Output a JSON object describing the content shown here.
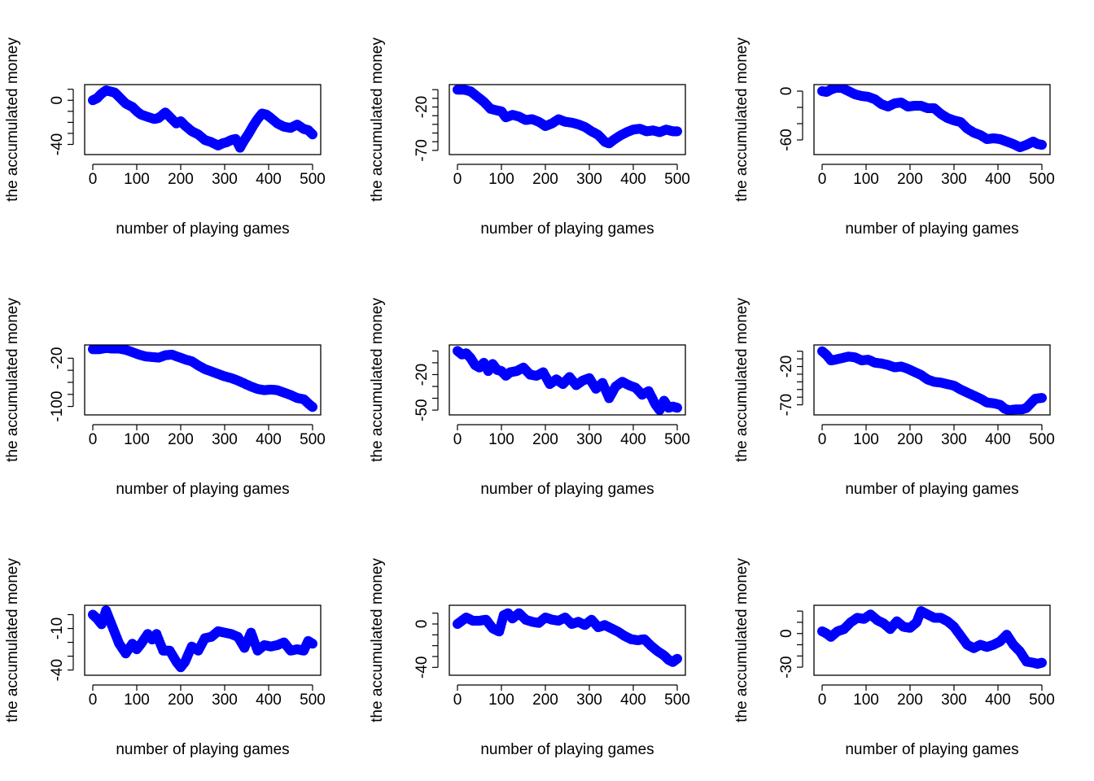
{
  "figure": {
    "xlabel": "number of playing games",
    "ylabel": "the accumulated money",
    "point_color": "#0000FF",
    "x_ticks": [
      0,
      100,
      200,
      300,
      400,
      500
    ]
  },
  "chart_data": [
    {
      "type": "scatter",
      "xlabel": "number of playing games",
      "ylabel": "the accumulated money",
      "xlim": [
        0,
        500
      ],
      "ylim": [
        -47,
        12
      ],
      "yticks": [
        -40,
        -30,
        -20,
        -10,
        0,
        10
      ],
      "ytick_labels": [
        "-40",
        "",
        "",
        "",
        "0",
        ""
      ],
      "x": [
        0,
        10,
        20,
        30,
        40,
        50,
        60,
        75,
        90,
        100,
        110,
        125,
        140,
        150,
        165,
        175,
        190,
        200,
        210,
        225,
        240,
        255,
        270,
        285,
        295,
        305,
        315,
        325,
        335,
        345,
        355,
        365,
        375,
        385,
        395,
        405,
        420,
        435,
        450,
        465,
        480,
        490,
        500
      ],
      "values": [
        0,
        2,
        6,
        9,
        8,
        7,
        3,
        -3,
        -6,
        -10,
        -13,
        -15,
        -17,
        -16,
        -11,
        -15,
        -21,
        -19,
        -23,
        -28,
        -31,
        -36,
        -38,
        -41,
        -39,
        -38,
        -36,
        -35,
        -43,
        -36,
        -30,
        -23,
        -17,
        -12,
        -13,
        -16,
        -21,
        -24,
        -25,
        -22,
        -26,
        -27,
        -31
      ]
    },
    {
      "type": "scatter",
      "xlabel": "number of playing games",
      "ylabel": "the accumulated money",
      "xlim": [
        0,
        500
      ],
      "ylim": [
        -72,
        3
      ],
      "yticks": [
        -70,
        -60,
        -50,
        -40,
        -30,
        -20,
        -10,
        0
      ],
      "ytick_labels": [
        "-70",
        "",
        "",
        "",
        "",
        "-20",
        "",
        ""
      ],
      "x": [
        0,
        15,
        30,
        45,
        60,
        75,
        90,
        100,
        110,
        125,
        140,
        155,
        170,
        185,
        200,
        215,
        230,
        245,
        260,
        275,
        290,
        305,
        320,
        335,
        345,
        355,
        370,
        385,
        400,
        415,
        430,
        445,
        460,
        475,
        490,
        500
      ],
      "values": [
        0,
        0,
        -2,
        -8,
        -14,
        -22,
        -24,
        -25,
        -32,
        -29,
        -31,
        -35,
        -34,
        -37,
        -42,
        -39,
        -34,
        -37,
        -38,
        -40,
        -43,
        -48,
        -52,
        -60,
        -62,
        -58,
        -53,
        -49,
        -46,
        -45,
        -48,
        -47,
        -49,
        -46,
        -48,
        -48
      ]
    },
    {
      "type": "scatter",
      "xlabel": "number of playing games",
      "ylabel": "the accumulated money",
      "xlim": [
        0,
        500
      ],
      "ylim": [
        -75,
        5
      ],
      "yticks": [
        -60,
        -40,
        -20,
        0
      ],
      "ytick_labels": [
        "-60",
        "",
        "",
        "0"
      ],
      "x": [
        0,
        10,
        20,
        30,
        45,
        60,
        75,
        90,
        105,
        120,
        135,
        150,
        165,
        180,
        195,
        210,
        225,
        240,
        255,
        270,
        285,
        300,
        315,
        330,
        345,
        360,
        375,
        390,
        405,
        420,
        435,
        450,
        465,
        480,
        490,
        500
      ],
      "values": [
        0,
        -1,
        2,
        4,
        4,
        0,
        -4,
        -6,
        -7,
        -10,
        -16,
        -19,
        -15,
        -14,
        -19,
        -18,
        -18,
        -21,
        -21,
        -28,
        -33,
        -36,
        -38,
        -46,
        -51,
        -54,
        -59,
        -58,
        -59,
        -62,
        -65,
        -69,
        -66,
        -62,
        -65,
        -66
      ]
    },
    {
      "type": "scatter",
      "xlabel": "number of playing games",
      "ylabel": "the accumulated money",
      "xlim": [
        0,
        500
      ],
      "ylim": [
        -110,
        -2
      ],
      "yticks": [
        -100,
        -80,
        -60,
        -40,
        -20
      ],
      "ytick_labels": [
        "-100",
        "",
        "",
        "",
        "-20"
      ],
      "x": [
        0,
        15,
        30,
        45,
        60,
        75,
        90,
        105,
        120,
        135,
        150,
        165,
        180,
        195,
        210,
        225,
        240,
        255,
        270,
        285,
        300,
        315,
        330,
        345,
        360,
        375,
        390,
        405,
        420,
        435,
        450,
        465,
        480,
        490,
        500
      ],
      "values": [
        -5,
        -5,
        -3,
        -4,
        -4,
        -6,
        -10,
        -14,
        -17,
        -18,
        -19,
        -15,
        -14,
        -18,
        -22,
        -25,
        -32,
        -38,
        -42,
        -46,
        -50,
        -53,
        -57,
        -62,
        -67,
        -71,
        -73,
        -72,
        -73,
        -77,
        -81,
        -86,
        -88,
        -95,
        -101
      ]
    },
    {
      "type": "scatter",
      "xlabel": "number of playing games",
      "ylabel": "the accumulated money",
      "xlim": [
        0,
        500
      ],
      "ylim": [
        -52,
        3
      ],
      "yticks": [
        -50,
        -40,
        -30,
        -20,
        -10,
        0
      ],
      "ytick_labels": [
        "-50",
        "",
        "",
        "-20",
        "",
        ""
      ],
      "x": [
        0,
        10,
        20,
        30,
        40,
        50,
        60,
        70,
        80,
        90,
        100,
        110,
        120,
        135,
        150,
        165,
        180,
        195,
        210,
        225,
        240,
        255,
        270,
        285,
        300,
        315,
        330,
        345,
        360,
        375,
        390,
        405,
        420,
        435,
        450,
        460,
        470,
        480,
        490,
        500
      ],
      "values": [
        0,
        -3,
        -2,
        -6,
        -12,
        -14,
        -10,
        -17,
        -11,
        -16,
        -17,
        -21,
        -18,
        -17,
        -14,
        -20,
        -21,
        -18,
        -28,
        -24,
        -28,
        -22,
        -29,
        -25,
        -23,
        -32,
        -27,
        -40,
        -30,
        -26,
        -29,
        -31,
        -37,
        -34,
        -45,
        -50,
        -42,
        -48,
        -47,
        -48
      ]
    },
    {
      "type": "scatter",
      "xlabel": "number of playing games",
      "ylabel": "the accumulated money",
      "xlim": [
        0,
        500
      ],
      "ylim": [
        -80,
        5
      ],
      "yticks": [
        -70,
        -60,
        -50,
        -40,
        -30,
        -20,
        -10,
        0
      ],
      "ytick_labels": [
        "-70",
        "",
        "",
        "",
        "",
        "-20",
        "",
        ""
      ],
      "x": [
        0,
        10,
        20,
        30,
        45,
        60,
        75,
        90,
        105,
        120,
        135,
        150,
        165,
        180,
        195,
        210,
        225,
        240,
        255,
        270,
        285,
        300,
        315,
        330,
        345,
        360,
        375,
        390,
        405,
        415,
        425,
        440,
        455,
        465,
        475,
        485,
        500
      ],
      "values": [
        0,
        -5,
        -12,
        -11,
        -9,
        -7,
        -8,
        -12,
        -11,
        -15,
        -16,
        -18,
        -21,
        -20,
        -23,
        -27,
        -31,
        -37,
        -40,
        -41,
        -43,
        -45,
        -50,
        -54,
        -58,
        -62,
        -67,
        -68,
        -70,
        -75,
        -77,
        -76,
        -76,
        -74,
        -68,
        -62,
        -61
      ]
    },
    {
      "type": "scatter",
      "xlabel": "number of playing games",
      "ylabel": "the accumulated money",
      "xlim": [
        0,
        500
      ],
      "ylim": [
        -42,
        5
      ],
      "yticks": [
        -40,
        -30,
        -20,
        -10,
        0
      ],
      "ytick_labels": [
        "-40",
        "",
        "",
        "-10",
        ""
      ],
      "x": [
        0,
        10,
        20,
        30,
        40,
        50,
        60,
        75,
        90,
        100,
        110,
        125,
        135,
        145,
        160,
        175,
        190,
        200,
        210,
        225,
        240,
        255,
        270,
        285,
        300,
        315,
        330,
        345,
        360,
        375,
        390,
        405,
        420,
        435,
        450,
        465,
        480,
        490,
        500
      ],
      "values": [
        0,
        -3,
        -7,
        3,
        -5,
        -13,
        -21,
        -28,
        -21,
        -25,
        -21,
        -14,
        -18,
        -14,
        -26,
        -26,
        -34,
        -38,
        -34,
        -23,
        -26,
        -17,
        -16,
        -12,
        -13,
        -14,
        -16,
        -24,
        -13,
        -26,
        -22,
        -23,
        -22,
        -20,
        -26,
        -25,
        -26,
        -19,
        -21
      ]
    },
    {
      "type": "scatter",
      "xlabel": "number of playing games",
      "ylabel": "the accumulated money",
      "xlim": [
        0,
        500
      ],
      "ylim": [
        -45,
        15
      ],
      "yticks": [
        -40,
        -30,
        -20,
        -10,
        0,
        10
      ],
      "ytick_labels": [
        "-40",
        "",
        "",
        "",
        "0",
        ""
      ],
      "x": [
        0,
        10,
        20,
        35,
        50,
        65,
        80,
        95,
        105,
        115,
        125,
        140,
        155,
        170,
        185,
        200,
        215,
        230,
        245,
        260,
        275,
        290,
        305,
        320,
        335,
        350,
        365,
        380,
        395,
        410,
        425,
        440,
        455,
        470,
        480,
        490,
        500
      ],
      "values": [
        0,
        3,
        6,
        3,
        3,
        4,
        -4,
        -7,
        8,
        10,
        5,
        10,
        4,
        2,
        1,
        6,
        4,
        3,
        6,
        0,
        2,
        -1,
        4,
        -3,
        -1,
        -4,
        -7,
        -11,
        -14,
        -15,
        -14,
        -20,
        -25,
        -29,
        -33,
        -35,
        -32
      ]
    },
    {
      "type": "scatter",
      "xlabel": "number of playing games",
      "ylabel": "the accumulated money",
      "xlim": [
        0,
        500
      ],
      "ylim": [
        -35,
        23
      ],
      "yticks": [
        -30,
        -20,
        -10,
        0,
        10,
        20
      ],
      "ytick_labels": [
        "-30",
        "",
        "",
        "0",
        "",
        ""
      ],
      "x": [
        0,
        10,
        20,
        35,
        50,
        65,
        80,
        95,
        110,
        125,
        140,
        155,
        170,
        185,
        200,
        215,
        225,
        240,
        255,
        270,
        285,
        300,
        315,
        330,
        345,
        360,
        375,
        390,
        405,
        420,
        435,
        450,
        465,
        480,
        490,
        500
      ],
      "values": [
        2,
        0,
        -3,
        2,
        4,
        10,
        14,
        13,
        17,
        12,
        9,
        4,
        11,
        6,
        5,
        10,
        20,
        17,
        14,
        14,
        11,
        6,
        -2,
        -10,
        -13,
        -10,
        -12,
        -10,
        -7,
        -1,
        -10,
        -16,
        -25,
        -26,
        -27,
        -26
      ]
    }
  ]
}
